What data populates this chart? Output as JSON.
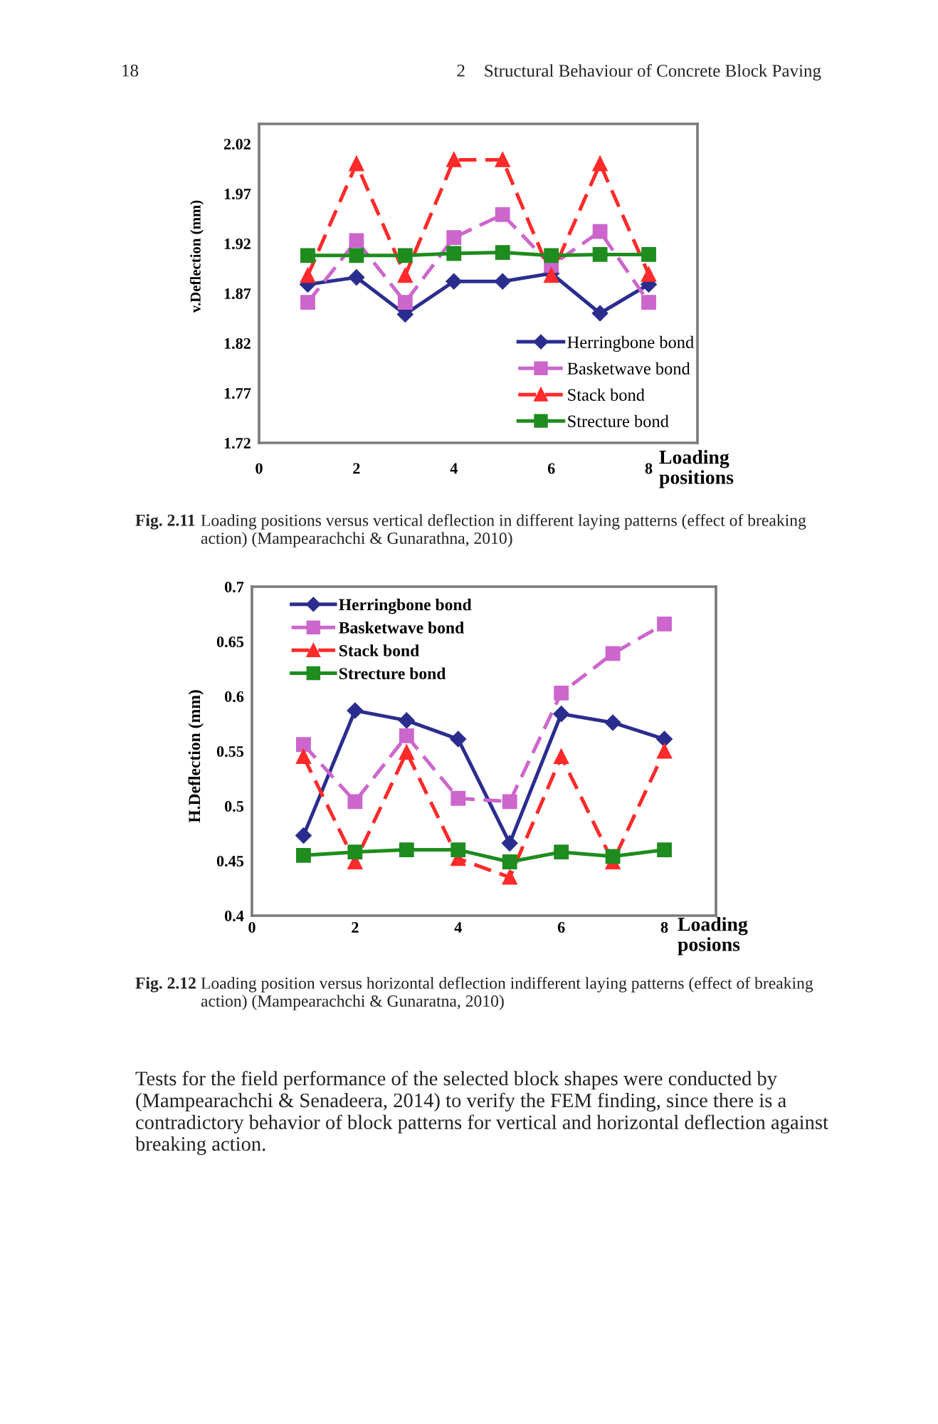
{
  "chart_data": [
    {
      "type": "line",
      "xlabel": "Loading positions",
      "ylabel": "v.Deflection (mm)",
      "x": [
        1,
        2,
        3,
        4,
        5,
        6,
        7,
        8
      ],
      "xlim": [
        0,
        9
      ],
      "xticks": [
        0,
        2,
        4,
        6,
        8
      ],
      "ylim": [
        1.72,
        2.04
      ],
      "yticks": [
        1.72,
        1.77,
        1.82,
        1.87,
        1.92,
        1.97,
        2.02
      ],
      "legend": "bottom right",
      "annotations": [
        "18",
        "2",
        "Structural Behaviour of Concrete Block Paving",
        "Fig. 2.11",
        "Loading positions versus vertical deflection in different laying patterns (effect of breaking action) (Mampearachchi & Gunarathna, 2010)"
      ],
      "series": [
        {
          "name": "Herringbone bond",
          "color": "#2b2d8e",
          "marker": "diamond",
          "line_style": "solid",
          "values": [
            1.879,
            1.886,
            1.849,
            1.882,
            1.882,
            1.89,
            1.85,
            1.879
          ]
        },
        {
          "name": "Basketwave bond",
          "color": "#cc66cc",
          "marker": "square",
          "line_style": "dashed",
          "values": [
            1.861,
            1.923,
            1.861,
            1.926,
            1.949,
            1.898,
            1.932,
            1.861
          ]
        },
        {
          "name": "Stack bond",
          "color": "#ff2a2a",
          "marker": "triangle",
          "line_style": "dashed",
          "values": [
            1.888,
            2.0,
            1.888,
            2.004,
            2.004,
            1.888,
            2.0,
            1.889
          ]
        },
        {
          "name": "Strecture bond",
          "color": "#1e8c1e",
          "marker": "square",
          "line_style": "solid",
          "values": [
            1.908,
            1.908,
            1.908,
            1.91,
            1.911,
            1.908,
            1.909,
            1.909
          ]
        }
      ]
    },
    {
      "type": "line",
      "xlabel": "Loading posions",
      "ylabel": "H.Deflection (mm)",
      "x": [
        1,
        2,
        3,
        4,
        5,
        6,
        7,
        8
      ],
      "xlim": [
        0,
        9
      ],
      "xticks": [
        0,
        2,
        4,
        6,
        8
      ],
      "ylim": [
        0.4,
        0.7
      ],
      "yticks": [
        0.4,
        0.45,
        0.5,
        0.55,
        0.6,
        0.65,
        0.7
      ],
      "legend": "top left",
      "annotations": [
        "Fig. 2.12",
        "Loading position versus horizontal deflection indifferent laying patterns (effect of breaking action) (Mampearachchi & Gunaratna, 2010)",
        "Tests for the field performance of the selected block shapes were conducted by (Mampearachchi & Senadeera, 2014) to verify the FEM finding, since there is a contradictory behavior of block patterns for vertical and horizontal deflection against breaking action."
      ],
      "series": [
        {
          "name": "Herringbone bond",
          "color": "#2b2d8e",
          "marker": "diamond",
          "line_style": "solid",
          "values": [
            0.473,
            0.587,
            0.578,
            0.561,
            0.466,
            0.584,
            0.576,
            0.561
          ]
        },
        {
          "name": "Basketwave bond",
          "color": "#cc66cc",
          "marker": "square",
          "line_style": "dashed",
          "values": [
            0.556,
            0.504,
            0.564,
            0.507,
            0.504,
            0.603,
            0.639,
            0.666
          ]
        },
        {
          "name": "Stack bond",
          "color": "#ff2a2a",
          "marker": "triangle",
          "line_style": "dashed",
          "values": [
            0.545,
            0.449,
            0.549,
            0.452,
            0.435,
            0.545,
            0.449,
            0.55
          ]
        },
        {
          "name": "Strecture bond",
          "color": "#1e8c1e",
          "marker": "square",
          "line_style": "solid",
          "values": [
            0.455,
            0.458,
            0.46,
            0.46,
            0.449,
            0.458,
            0.454,
            0.46
          ]
        }
      ]
    }
  ]
}
